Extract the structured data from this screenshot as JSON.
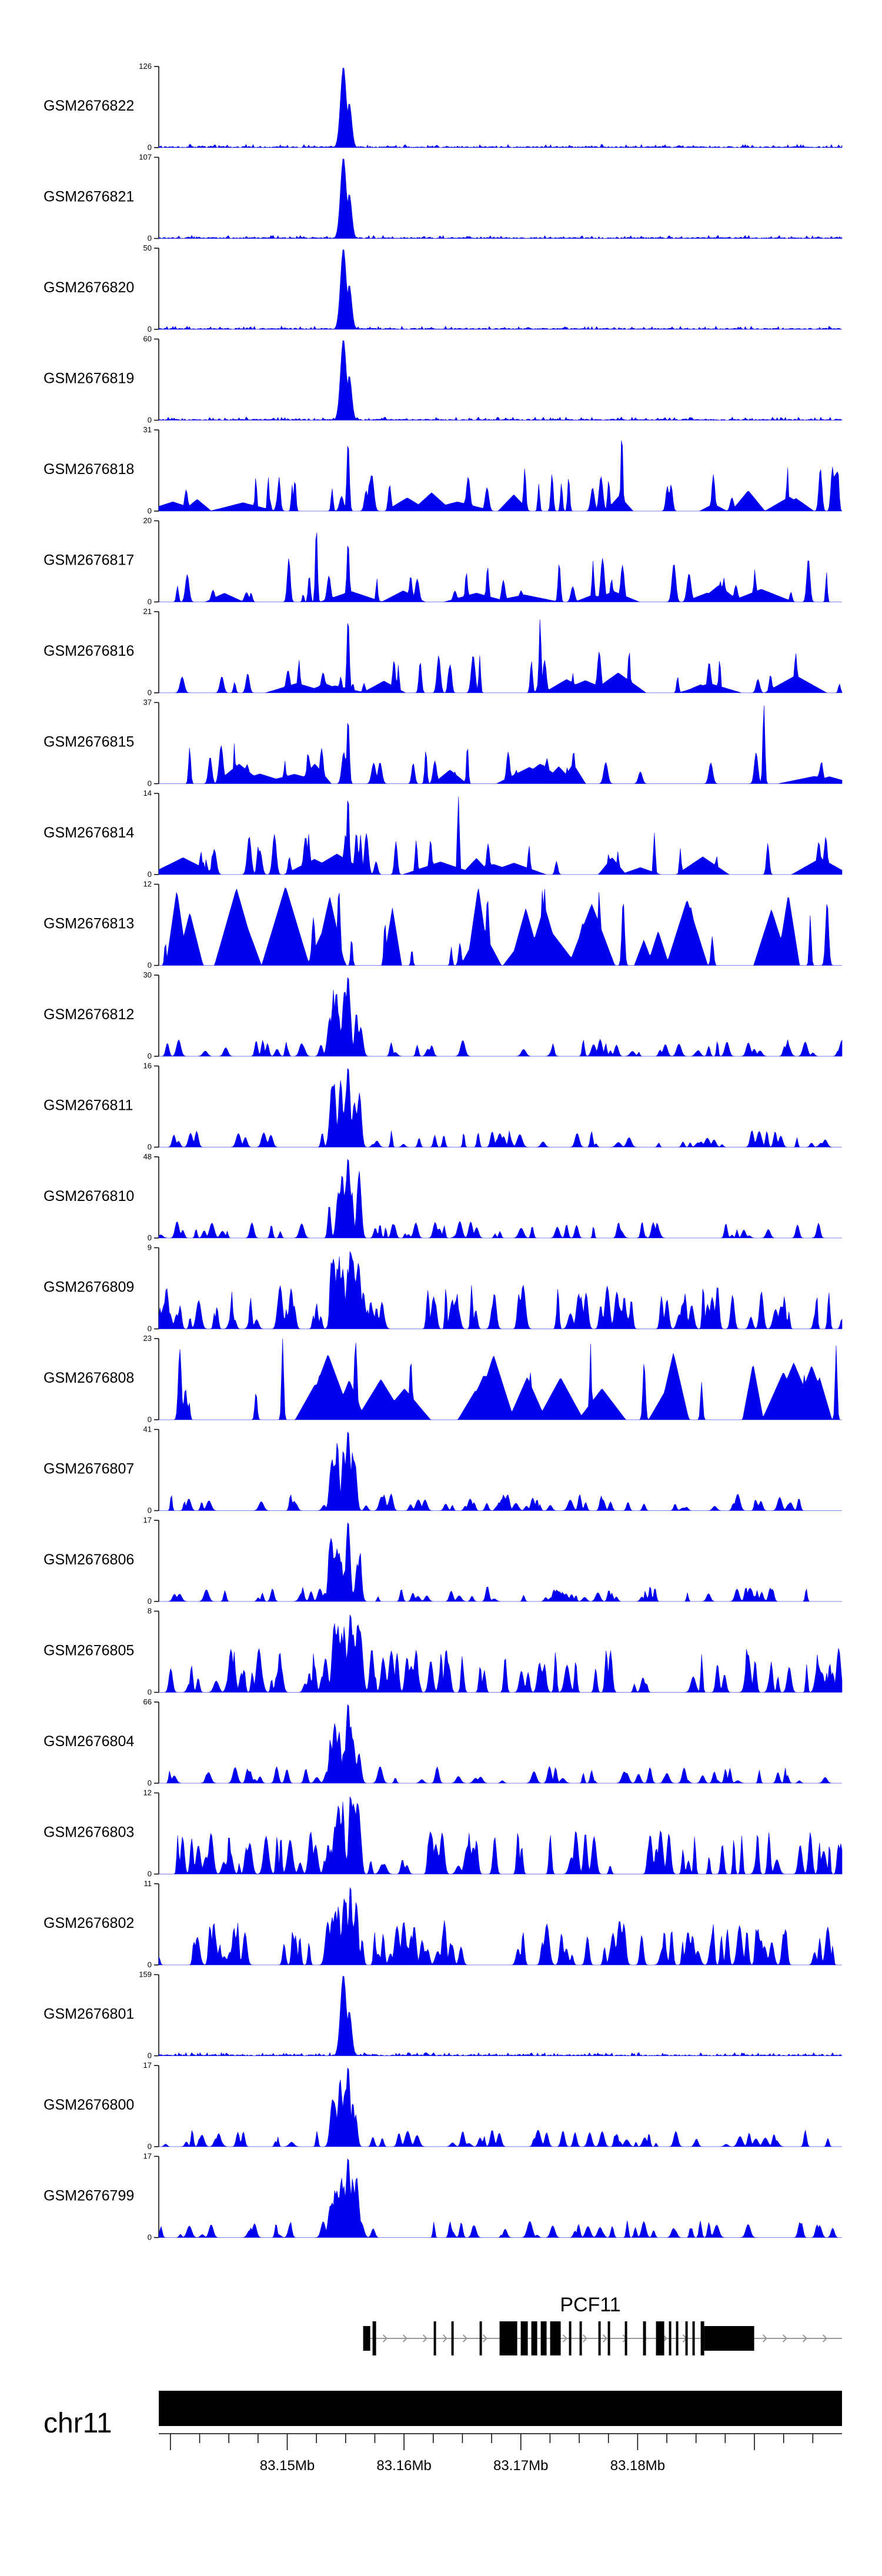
{
  "colors": {
    "signal": "#0000ee",
    "axis": "#000000",
    "gene": "#000000",
    "intron_arrow": "#999999"
  },
  "chart_data": {
    "type": "area",
    "genome": {
      "chromosome": "chr11",
      "range_mb": [
        83.139,
        83.1975
      ],
      "ticks_mb": [
        83.15,
        83.16,
        83.17,
        83.18
      ],
      "tick_labels": [
        "83.15Mb",
        "83.16Mb",
        "83.17Mb",
        "83.18Mb"
      ]
    },
    "gene": {
      "name": "PCF11",
      "start_mb": 83.1565,
      "end_mb": 83.1975
    },
    "tracks": [
      {
        "name": "GSM2676822",
        "ymax": 126,
        "ymin_label": "0",
        "ymax_label": "126",
        "profile": "sharp",
        "seed": 1
      },
      {
        "name": "GSM2676821",
        "ymax": 107,
        "ymin_label": "0",
        "ymax_label": "107",
        "profile": "sharp",
        "seed": 2
      },
      {
        "name": "GSM2676820",
        "ymax": 50,
        "ymin_label": "0",
        "ymax_label": "50",
        "profile": "sharp",
        "seed": 3
      },
      {
        "name": "GSM2676819",
        "ymax": 60,
        "ymin_label": "0",
        "ymax_label": "60",
        "profile": "sharp",
        "seed": 4
      },
      {
        "name": "GSM2676818",
        "ymax": 31,
        "ymin_label": "0",
        "ymax_label": "31",
        "profile": "sparse",
        "seed": 5
      },
      {
        "name": "GSM2676817",
        "ymax": 20,
        "ymin_label": "0",
        "ymax_label": "20",
        "profile": "sparse",
        "seed": 6
      },
      {
        "name": "GSM2676816",
        "ymax": 21,
        "ymin_label": "0",
        "ymax_label": "21",
        "profile": "sparse",
        "seed": 7
      },
      {
        "name": "GSM2676815",
        "ymax": 37,
        "ymin_label": "0",
        "ymax_label": "37",
        "profile": "sparse",
        "seed": 8
      },
      {
        "name": "GSM2676814",
        "ymax": 14,
        "ymin_label": "0",
        "ymax_label": "14",
        "profile": "sparse",
        "seed": 9
      },
      {
        "name": "GSM2676813",
        "ymax": 12,
        "ymin_label": "0",
        "ymax_label": "12",
        "profile": "triangles",
        "seed": 10
      },
      {
        "name": "GSM2676812",
        "ymax": 30,
        "ymin_label": "0",
        "ymax_label": "30",
        "profile": "moderate",
        "seed": 11
      },
      {
        "name": "GSM2676811",
        "ymax": 16,
        "ymin_label": "0",
        "ymax_label": "16",
        "profile": "moderate",
        "seed": 12
      },
      {
        "name": "GSM2676810",
        "ymax": 48,
        "ymin_label": "0",
        "ymax_label": "48",
        "profile": "moderate",
        "seed": 13
      },
      {
        "name": "GSM2676809",
        "ymax": 9,
        "ymin_label": "0",
        "ymax_label": "9",
        "profile": "dense",
        "seed": 14
      },
      {
        "name": "GSM2676808",
        "ymax": 23,
        "ymin_label": "0",
        "ymax_label": "23",
        "profile": "triangles",
        "seed": 15
      },
      {
        "name": "GSM2676807",
        "ymax": 41,
        "ymin_label": "0",
        "ymax_label": "41",
        "profile": "moderate",
        "seed": 16
      },
      {
        "name": "GSM2676806",
        "ymax": 17,
        "ymin_label": "0",
        "ymax_label": "17",
        "profile": "moderate",
        "seed": 17
      },
      {
        "name": "GSM2676805",
        "ymax": 8,
        "ymin_label": "0",
        "ymax_label": "8",
        "profile": "dense",
        "seed": 18
      },
      {
        "name": "GSM2676804",
        "ymax": 66,
        "ymin_label": "0",
        "ymax_label": "66",
        "profile": "moderate",
        "seed": 19
      },
      {
        "name": "GSM2676803",
        "ymax": 12,
        "ymin_label": "0",
        "ymax_label": "12",
        "profile": "dense",
        "seed": 20
      },
      {
        "name": "GSM2676802",
        "ymax": 11,
        "ymin_label": "0",
        "ymax_label": "11",
        "profile": "dense",
        "seed": 21
      },
      {
        "name": "GSM2676801",
        "ymax": 159,
        "ymin_label": "0",
        "ymax_label": "159",
        "profile": "sharp",
        "seed": 22
      },
      {
        "name": "GSM2676800",
        "ymax": 17,
        "ymin_label": "0",
        "ymax_label": "17",
        "profile": "moderate",
        "seed": 23
      },
      {
        "name": "GSM2676799",
        "ymax": 17,
        "ymin_label": "0",
        "ymax_label": "17",
        "profile": "moderate",
        "seed": 24
      }
    ]
  }
}
